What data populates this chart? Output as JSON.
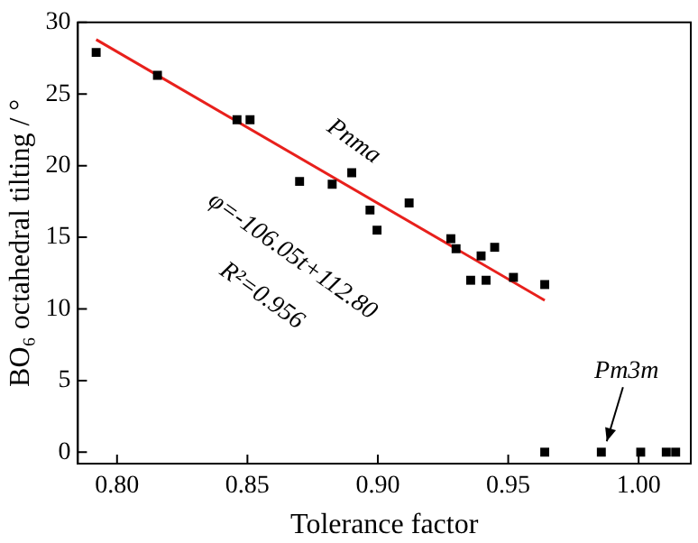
{
  "chart_data": {
    "type": "scatter",
    "xlabel": "Tolerance factor",
    "ylabel": "BO₆ octahedral tilting / °",
    "xlim": [
      0.785,
      1.02
    ],
    "ylim": [
      -0.8,
      30
    ],
    "xticks": [
      {
        "value": 0.8,
        "label": "0.80"
      },
      {
        "value": 0.85,
        "label": "0.85"
      },
      {
        "value": 0.9,
        "label": "0.90"
      },
      {
        "value": 0.95,
        "label": "0.95"
      },
      {
        "value": 1.0,
        "label": "1.00"
      }
    ],
    "yticks": [
      0,
      5,
      10,
      15,
      20,
      25,
      30
    ],
    "grid": false,
    "legend": false,
    "marker": "square",
    "series": [
      {
        "color": "#000000",
        "x": [
          0.792,
          0.8155,
          0.846,
          0.851,
          0.87,
          0.8825,
          0.89,
          0.897,
          0.8997,
          0.912,
          0.928,
          0.93,
          0.9396,
          0.9448,
          0.9356,
          0.9415,
          0.952,
          0.964,
          0.964,
          0.9857,
          1.0008,
          1.0106,
          1.0142
        ],
        "values": [
          27.9,
          26.3,
          23.2,
          23.2,
          18.9,
          18.7,
          19.5,
          16.9,
          15.5,
          17.4,
          14.9,
          14.2,
          13.7,
          14.3,
          12.0,
          12.0,
          12.2,
          11.7,
          0,
          0,
          0,
          0,
          0
        ]
      },
      {
        "type": "line",
        "color": "#e8201c",
        "marker": "none",
        "line_style": "solid",
        "x": [
          0.792,
          0.964
        ],
        "values": [
          28.8,
          10.6
        ]
      }
    ],
    "annotations": [
      "Pnma",
      "φ=-106.05t+112.80",
      "R²=0.956",
      {
        "text": "Pm3m",
        "x": 0.9857,
        "y": 0
      }
    ]
  }
}
